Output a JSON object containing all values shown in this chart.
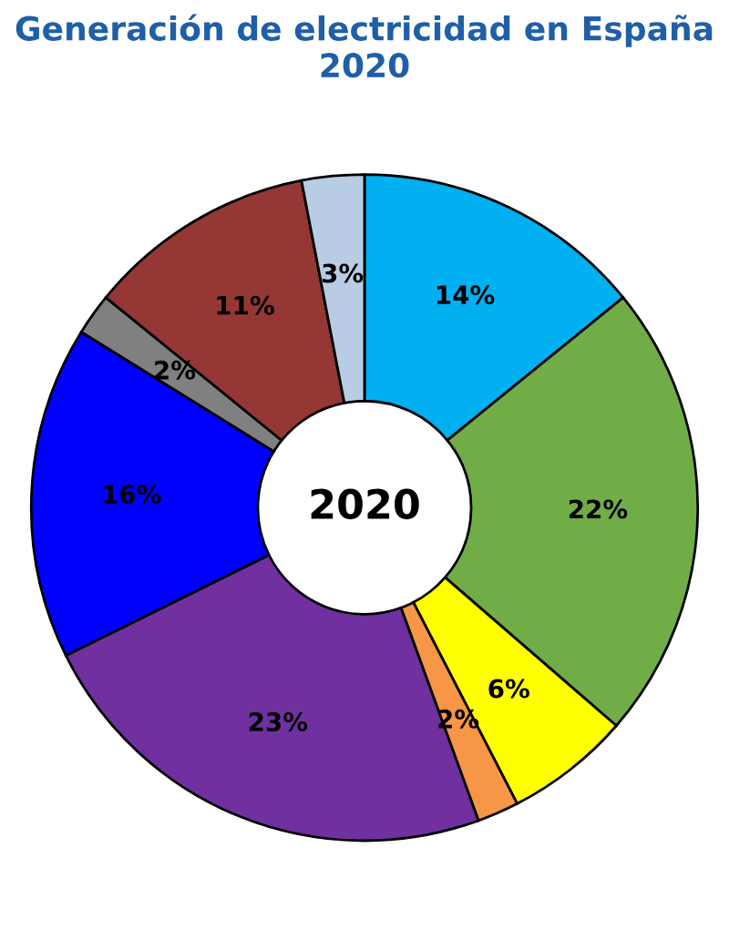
{
  "chart_data": {
    "type": "donut",
    "title": "Generación de electricidad en España\n2020",
    "categories": [
      null,
      null,
      null,
      null,
      null,
      null,
      null,
      null,
      null
    ],
    "values": [
      14,
      22,
      6,
      2,
      23,
      16,
      2,
      11,
      3
    ],
    "colors": [
      "#00b0f0",
      "#70ad47",
      "#ffff00",
      "#f79646",
      "#7030a0",
      "#0000ff",
      "#808080",
      "#953735",
      "#b8cce4"
    ],
    "value_labels": [
      "14%",
      "22%",
      "6%",
      "2%",
      "23%",
      "16%",
      "2%",
      "11%",
      "3%"
    ],
    "annotations": [
      "2020"
    ],
    "legend": false
  }
}
